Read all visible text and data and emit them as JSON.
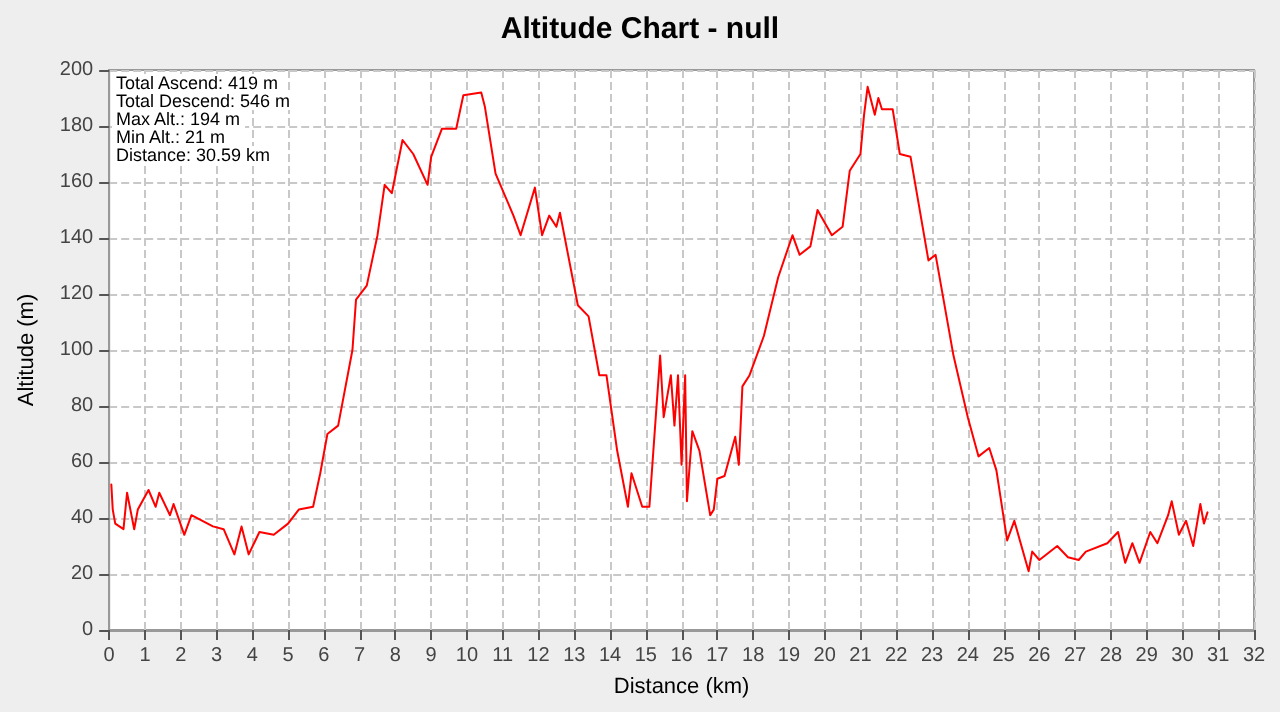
{
  "chart_data": {
    "type": "line",
    "title": "Altitude Chart - null",
    "xlabel": "Distance (km)",
    "ylabel": "Altitude (m)",
    "annotations": [
      "Total Ascend: 419 m",
      "Total Descend: 546 m",
      "Max Alt.: 194 m",
      "Min Alt.: 21 m",
      "Distance: 30.59 km"
    ],
    "xlim": [
      0,
      32
    ],
    "xticks": [
      0,
      1,
      2,
      3,
      4,
      5,
      6,
      7,
      8,
      9,
      10,
      11,
      12,
      13,
      14,
      15,
      16,
      17,
      18,
      19,
      20,
      21,
      22,
      23,
      24,
      25,
      26,
      27,
      28,
      29,
      30,
      31,
      32
    ],
    "ylim": [
      0,
      200
    ],
    "yticks": [
      0,
      20,
      40,
      60,
      80,
      100,
      120,
      140,
      160,
      180,
      200
    ],
    "grid": true,
    "marker": "none",
    "line_style": "solid",
    "series": [
      {
        "color": "#ff0000",
        "x": [
          0.06,
          0.1,
          0.17,
          0.4,
          0.5,
          0.7,
          0.8,
          1.1,
          1.3,
          1.4,
          1.7,
          1.8,
          2.1,
          2.3,
          2.9,
          3.2,
          3.5,
          3.7,
          3.9,
          4.2,
          4.6,
          5.0,
          5.3,
          5.7,
          5.9,
          6.1,
          6.4,
          6.8,
          6.9,
          7.2,
          7.5,
          7.7,
          7.9,
          8.2,
          8.5,
          8.9,
          9.0,
          9.3,
          9.7,
          9.9,
          10.4,
          10.5,
          10.8,
          11.3,
          11.5,
          11.9,
          12.1,
          12.3,
          12.5,
          12.6,
          13.1,
          13.4,
          13.7,
          13.9,
          14.2,
          14.5,
          14.6,
          14.9,
          15.1,
          15.4,
          15.5,
          15.7,
          15.8,
          15.9,
          16.0,
          16.1,
          16.15,
          16.3,
          16.5,
          16.8,
          16.9,
          17.0,
          17.2,
          17.5,
          17.6,
          17.7,
          17.9,
          18.3,
          18.7,
          19.1,
          19.3,
          19.6,
          19.8,
          20.2,
          20.5,
          20.7,
          21.0,
          21.1,
          21.2,
          21.4,
          21.5,
          21.6,
          21.9,
          22.1,
          22.4,
          22.9,
          23.1,
          23.6,
          24.0,
          24.3,
          24.6,
          24.8,
          25.1,
          25.3,
          25.7,
          25.8,
          26.0,
          26.5,
          26.8,
          27.1,
          27.3,
          27.9,
          28.2,
          28.4,
          28.6,
          28.8,
          29.1,
          29.3,
          29.6,
          29.7,
          29.9,
          30.1,
          30.3,
          30.5,
          30.6,
          30.7
        ],
        "values": [
          52,
          43,
          38,
          36,
          49,
          36,
          43,
          50,
          44,
          49,
          41,
          45,
          34,
          41,
          37,
          36,
          27,
          37,
          27,
          35,
          34,
          38,
          43,
          44,
          56,
          70,
          73,
          100,
          118,
          123,
          141,
          159,
          156,
          175,
          170,
          159,
          169,
          179,
          179,
          191,
          192,
          187,
          163,
          148,
          141,
          158,
          141,
          148,
          144,
          149,
          116,
          112,
          91,
          91,
          64,
          44,
          56,
          44,
          44,
          98,
          76,
          91,
          73,
          91,
          59,
          91,
          46,
          71,
          64,
          41,
          43,
          54,
          55,
          69,
          59,
          87,
          91,
          105,
          126,
          141,
          134,
          137,
          150,
          141,
          144,
          164,
          170,
          184,
          194,
          184,
          190,
          186,
          186,
          170,
          169,
          132,
          134,
          98,
          76,
          62,
          65,
          57,
          32,
          39,
          21,
          28,
          25,
          30,
          26,
          25,
          28,
          31,
          35,
          24,
          31,
          24,
          35,
          31,
          41,
          46,
          34,
          39,
          30,
          45,
          38,
          42
        ]
      }
    ]
  }
}
